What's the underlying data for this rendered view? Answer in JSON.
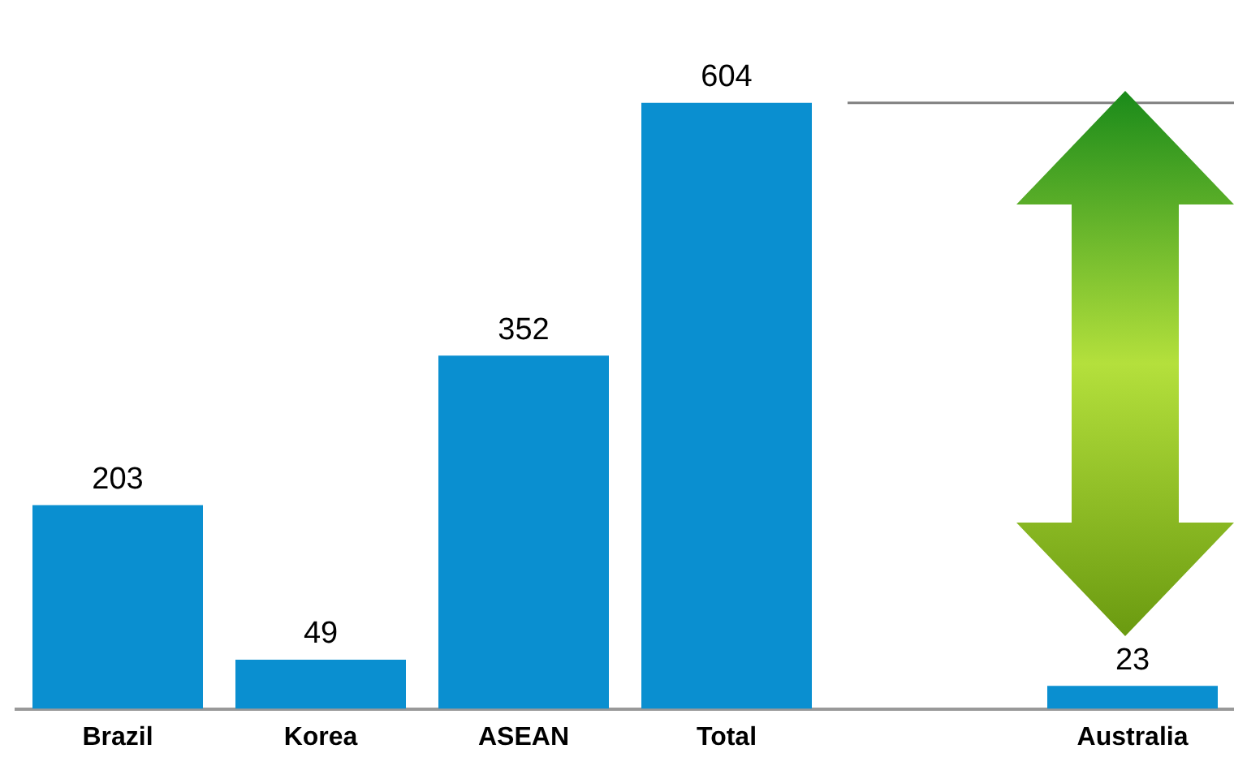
{
  "chart_data": {
    "type": "bar",
    "categories": [
      "Brazil",
      "Korea",
      "ASEAN",
      "Total",
      null,
      "Australia"
    ],
    "values": [
      203,
      49,
      352,
      604,
      null,
      23
    ],
    "color": "#0a8fd0",
    "data_labels": true,
    "grid": false,
    "legend": false,
    "ref_lines": [
      {
        "axis": "y",
        "value": 604,
        "color": "#808080"
      }
    ]
  }
}
